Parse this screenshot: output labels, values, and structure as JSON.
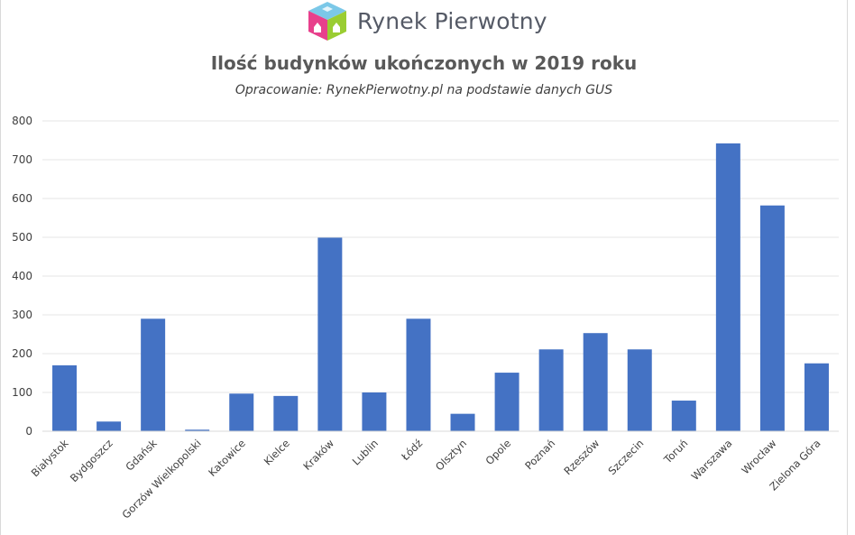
{
  "logo": {
    "brand": "Rynek Pierwotny"
  },
  "chart_data": {
    "type": "bar",
    "title": "Ilość budynków ukończonych w 2019 roku",
    "subtitle": "Opracowanie: RynekPierwotny.pl na podstawie danych GUS",
    "xlabel": "",
    "ylabel": "",
    "ylim": [
      0,
      800
    ],
    "yticks": [
      0,
      100,
      200,
      300,
      400,
      500,
      600,
      700,
      800
    ],
    "grid": true,
    "legend": "none",
    "categories": [
      "Białystok",
      "Bydgoszcz",
      "Gdańsk",
      "Gorzów Wielkopolski",
      "Katowice",
      "Kielce",
      "Kraków",
      "Lublin",
      "Łódź",
      "Olsztyn",
      "Opole",
      "Poznań",
      "Rzeszów",
      "Szczecin",
      "Toruń",
      "Warszawa",
      "Wrocław",
      "Zielona Góra"
    ],
    "values": [
      170,
      25,
      290,
      4,
      97,
      91,
      499,
      100,
      290,
      45,
      151,
      211,
      253,
      211,
      79,
      742,
      582,
      175
    ],
    "bar_color": "#4472c4",
    "grid_color": "#e6e6e6"
  }
}
